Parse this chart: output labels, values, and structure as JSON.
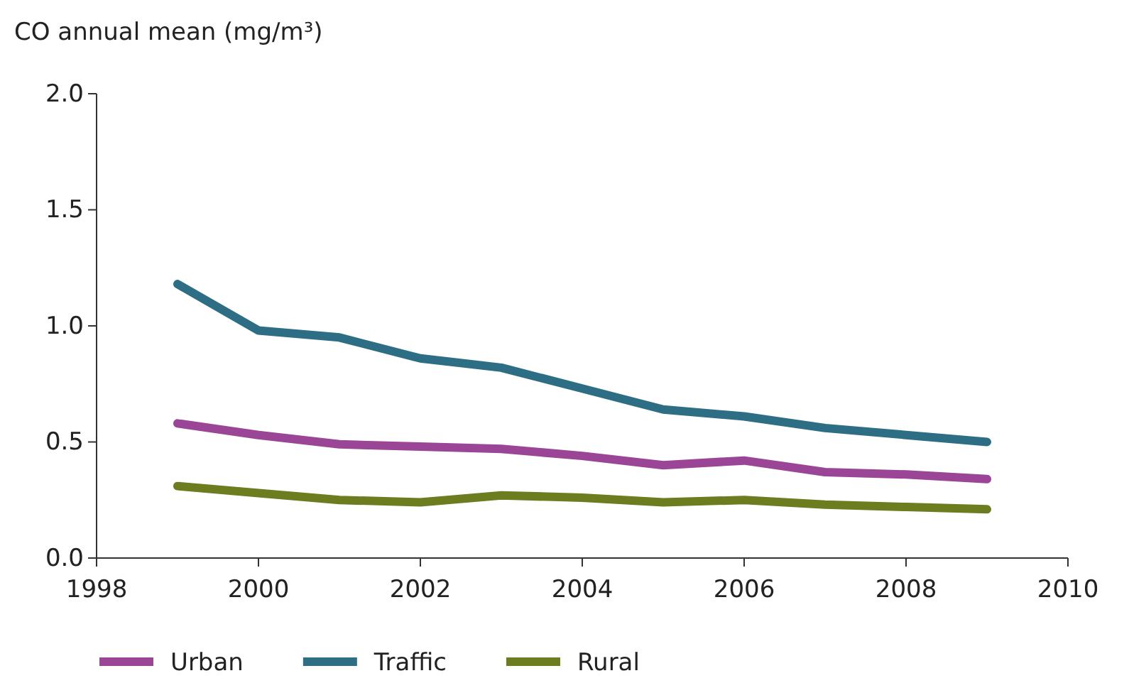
{
  "chart_data": {
    "type": "line",
    "ylabel": "CO annual mean (mg/m³)",
    "x": [
      1999,
      2000,
      2001,
      2002,
      2003,
      2004,
      2005,
      2006,
      2007,
      2008,
      2009
    ],
    "series": [
      {
        "name": "Urban",
        "color": "#9b4596",
        "values": [
          0.58,
          0.53,
          0.49,
          0.48,
          0.47,
          0.44,
          0.4,
          0.42,
          0.37,
          0.36,
          0.34
        ]
      },
      {
        "name": "Traffic",
        "color": "#2e6e84",
        "values": [
          1.18,
          0.98,
          0.95,
          0.86,
          0.82,
          0.73,
          0.64,
          0.61,
          0.56,
          0.53,
          0.5
        ]
      },
      {
        "name": "Rural",
        "color": "#6b7d1e",
        "values": [
          0.31,
          0.28,
          0.25,
          0.24,
          0.27,
          0.26,
          0.24,
          0.25,
          0.23,
          0.22,
          0.21
        ]
      }
    ],
    "xlim": [
      1998,
      2010
    ],
    "xticks": [
      1998,
      2000,
      2002,
      2004,
      2006,
      2008,
      2010
    ],
    "ylim": [
      0,
      2
    ],
    "yticks": [
      {
        "value": 0,
        "label": "0.0"
      },
      {
        "value": 0.5,
        "label": "0.5"
      },
      {
        "value": 1,
        "label": "1.0"
      },
      {
        "value": 1.5,
        "label": "1.5"
      },
      {
        "value": 2,
        "label": "2.0"
      }
    ],
    "grid": false,
    "legend": "bottom",
    "marker": "none",
    "line_style": "solid"
  }
}
